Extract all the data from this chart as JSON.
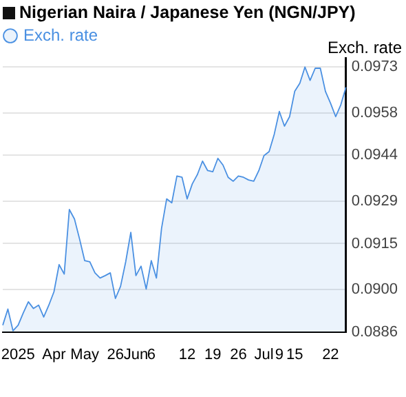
{
  "chart_data": {
    "type": "area",
    "title": "Nigerian Naira / Japanese Yen (NGN/JPY)",
    "ylabel": "Exch. rate",
    "categories": [
      null,
      null,
      null,
      "2025",
      null,
      null,
      null,
      null,
      null,
      null,
      "Apr",
      null,
      null,
      null,
      null,
      null,
      "May",
      null,
      null,
      null,
      null,
      null,
      "26",
      null,
      null,
      null,
      "Jun",
      null,
      null,
      "6",
      null,
      null,
      null,
      null,
      null,
      null,
      "12",
      null,
      null,
      null,
      null,
      "19",
      null,
      null,
      null,
      null,
      "26",
      null,
      null,
      null,
      null,
      "Jul",
      null,
      null,
      "9",
      null,
      null,
      "15",
      null,
      null,
      null,
      null,
      null,
      null,
      "22",
      null,
      null,
      null
    ],
    "series": [
      {
        "name": "Exch. rate",
        "color": "#4a90e2",
        "values": [
          0.08882,
          0.08935,
          0.08864,
          0.08882,
          0.08922,
          0.08959,
          0.08937,
          0.08948,
          0.08909,
          0.08948,
          0.08992,
          0.09081,
          0.0905,
          0.09262,
          0.09231,
          0.09165,
          0.09094,
          0.0909,
          0.09054,
          0.09037,
          0.09045,
          0.09054,
          0.0897,
          0.0901,
          0.0909,
          0.09187,
          0.09045,
          0.09076,
          0.09001,
          0.09094,
          0.09037,
          0.092,
          0.09297,
          0.09284,
          0.09372,
          0.09368,
          0.09297,
          0.09346,
          0.09377,
          0.09421,
          0.0939,
          0.09386,
          0.0943,
          0.09408,
          0.09368,
          0.09355,
          0.09372,
          0.09368,
          0.09359,
          0.09355,
          0.0939,
          0.09439,
          0.09452,
          0.09509,
          0.09584,
          0.09536,
          0.09567,
          0.0965,
          0.09677,
          0.0973,
          0.09686,
          0.09726,
          0.09726,
          0.0965,
          0.09611,
          0.09567,
          0.09606,
          0.09664
        ]
      }
    ],
    "ylim": [
      0.0886,
      0.0976
    ],
    "yticks": [
      0.0886,
      {
        "value": 0.09,
        "label": "0.0900"
      },
      0.0915,
      0.0929,
      0.0944,
      0.0958,
      0.0973
    ],
    "grid": "y",
    "legend": "top left",
    "marker": "none",
    "line_style": "solid"
  }
}
